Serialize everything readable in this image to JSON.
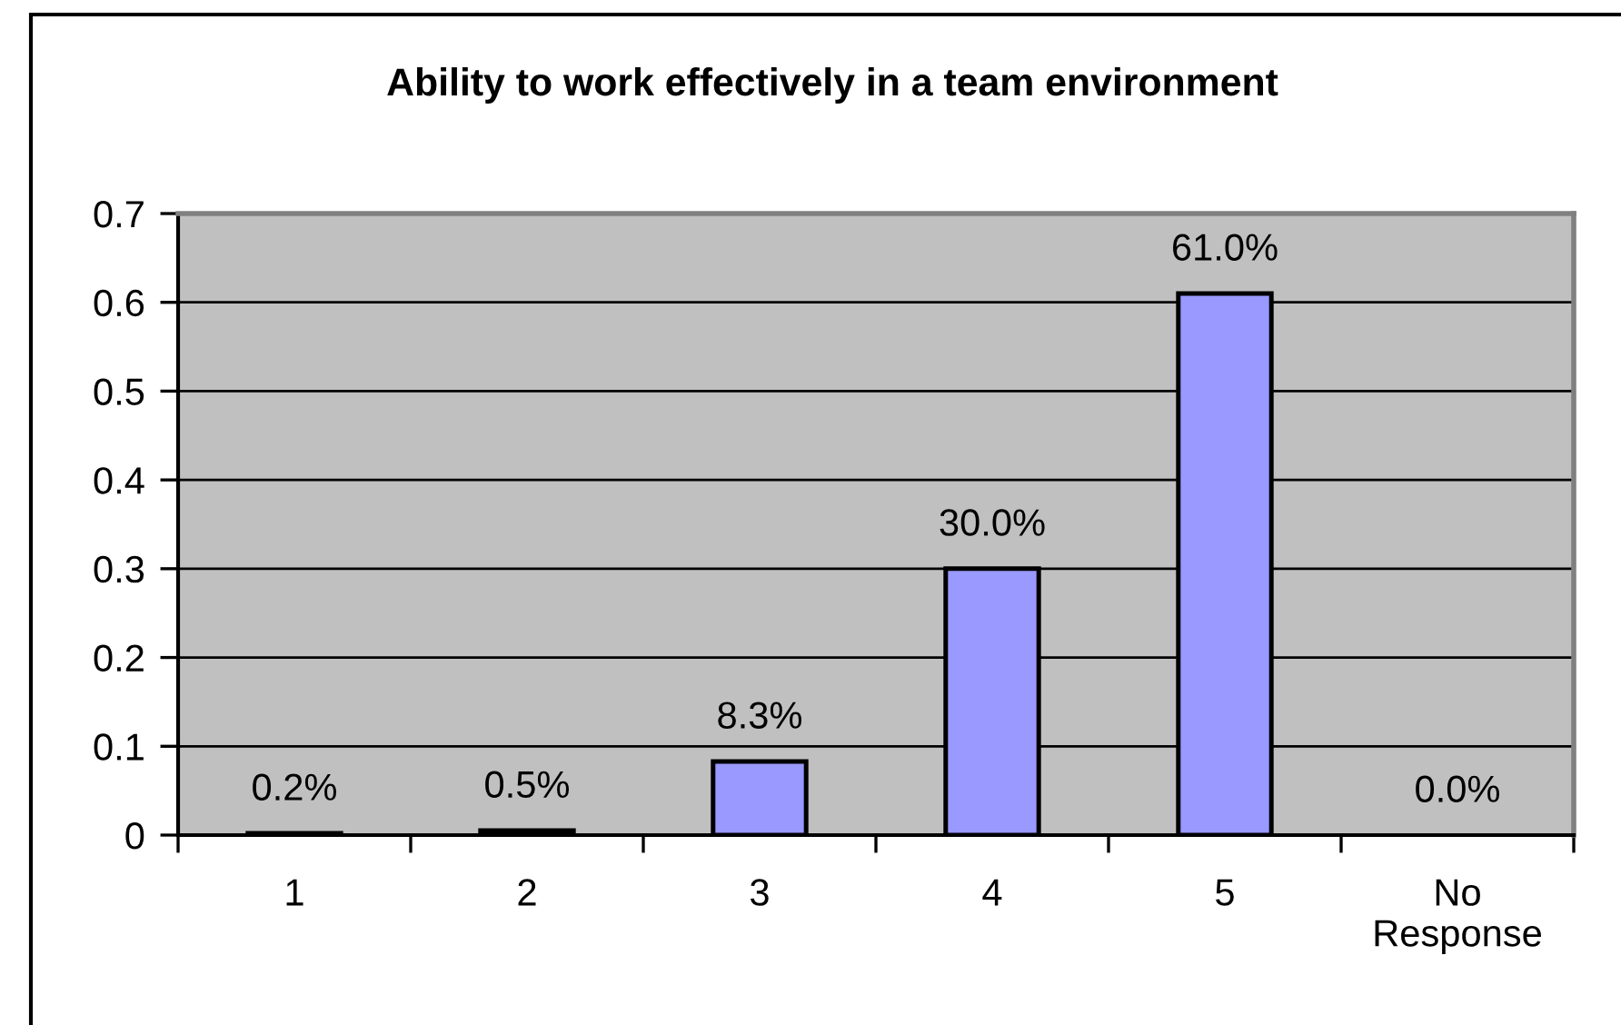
{
  "chart_data": {
    "type": "bar",
    "title": "Ability to work effectively in a team environment",
    "categories": [
      "1",
      "2",
      "3",
      "4",
      "5",
      "No\nResponse"
    ],
    "values": [
      0.002,
      0.005,
      0.083,
      0.3,
      0.61,
      0
    ],
    "value_labels": [
      "0.2%",
      "0.5%",
      "8.3%",
      "30.0%",
      "61.0%",
      "0.0%"
    ],
    "color": "#9999ff",
    "ylim": [
      0,
      0.7
    ],
    "yticks": [
      0,
      0.1,
      0.2,
      0.3,
      0.4,
      0.5,
      0.6,
      0.7
    ],
    "grid": "y"
  }
}
